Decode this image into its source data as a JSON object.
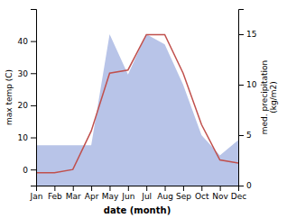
{
  "chart_data": {
    "type": "line",
    "xlabel": "date (month)",
    "ylabel": "max temp (C)",
    "y2label": "med. precipitation\n(kg/m2)",
    "categories": [
      "Jan",
      "Feb",
      "Mar",
      "Apr",
      "May",
      "Jun",
      "Jul",
      "Aug",
      "Sep",
      "Oct",
      "Nov",
      "Dec"
    ],
    "series": [
      {
        "type": "area",
        "axis": "y2",
        "color": "#b8c4e8",
        "values": [
          4,
          4,
          4,
          4,
          15,
          11,
          15,
          14,
          10,
          5,
          3,
          4.5
        ]
      },
      {
        "type": "line",
        "color": "#c0504d",
        "values": [
          -1,
          -1,
          0,
          12,
          30,
          31,
          42,
          42,
          30,
          14,
          3,
          2
        ]
      }
    ],
    "ylim": [
      -5,
      50
    ],
    "yticks": [
      0,
      10,
      20,
      30,
      40
    ],
    "y2lim": [
      0,
      17.5
    ],
    "y2ticks": [
      0,
      5,
      10,
      15
    ],
    "grid": false
  }
}
